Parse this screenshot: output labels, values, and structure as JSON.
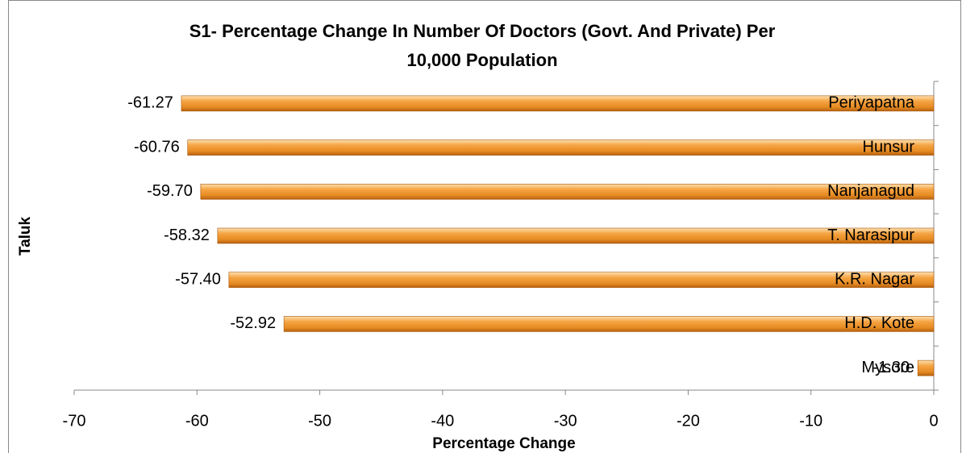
{
  "chart_data": {
    "type": "hbar",
    "title": [
      "S1- Percentage Change In Number Of Doctors (Govt. And Private) Per",
      "10,000 Population"
    ],
    "x_label": "Percentage Change",
    "y_label": "Taluk",
    "categories": [
      "Periyapatna",
      "Hunsur",
      "Nanjanagud",
      "T. Narasipur",
      "K.R. Nagar",
      "H.D. Kote",
      "Mysore"
    ],
    "values": [
      -61.27,
      -60.76,
      -59.7,
      -58.32,
      -57.4,
      -52.92,
      -1.3
    ],
    "value_labels": [
      "-61.27",
      "-60.76",
      "-59.70",
      "-58.32",
      "-57.40",
      "-52.92",
      "-1.30"
    ],
    "color": "#f0972f",
    "xlim": [
      -70,
      0
    ],
    "xticks": [
      -70,
      -60,
      -50,
      -40,
      -30,
      -20,
      -10,
      0
    ]
  }
}
